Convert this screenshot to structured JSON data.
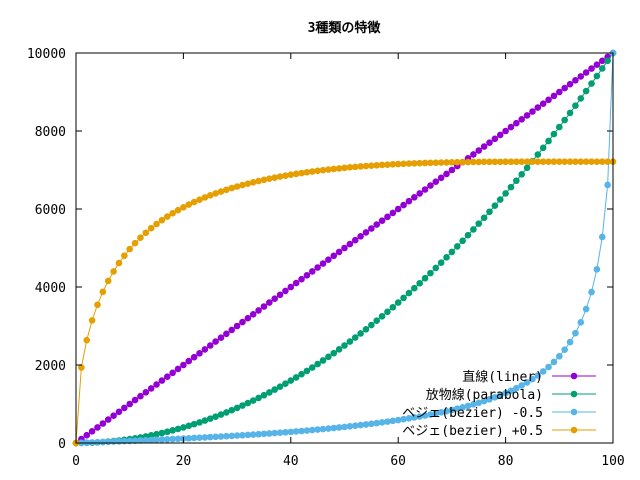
{
  "chart_data": {
    "type": "line",
    "title": "3種類の特徴",
    "xlabel": "",
    "ylabel": "",
    "xlim": [
      0,
      100
    ],
    "ylim": [
      0,
      10000
    ],
    "xticks": [
      0,
      20,
      40,
      60,
      80,
      100
    ],
    "yticks": [
      0,
      2000,
      4000,
      6000,
      8000,
      10000
    ],
    "grid": false,
    "legend_position": "bottom-right",
    "x": [
      0,
      1,
      2,
      3,
      4,
      5,
      6,
      7,
      8,
      9,
      10,
      11,
      12,
      13,
      14,
      15,
      16,
      17,
      18,
      19,
      20,
      21,
      22,
      23,
      24,
      25,
      26,
      27,
      28,
      29,
      30,
      31,
      32,
      33,
      34,
      35,
      36,
      37,
      38,
      39,
      40,
      41,
      42,
      43,
      44,
      45,
      46,
      47,
      48,
      49,
      50,
      51,
      52,
      53,
      54,
      55,
      56,
      57,
      58,
      59,
      60,
      61,
      62,
      63,
      64,
      65,
      66,
      67,
      68,
      69,
      70,
      71,
      72,
      73,
      74,
      75,
      76,
      77,
      78,
      79,
      80,
      81,
      82,
      83,
      84,
      85,
      86,
      87,
      88,
      89,
      90,
      91,
      92,
      93,
      94,
      95,
      96,
      97,
      98,
      99,
      100
    ],
    "series": [
      {
        "name": "直線(liner)",
        "color": "#9400d3",
        "values": [
          0,
          100,
          200,
          300,
          400,
          500,
          600,
          700,
          800,
          900,
          1000,
          1100,
          1200,
          1300,
          1400,
          1500,
          1600,
          1700,
          1800,
          1900,
          2000,
          2100,
          2200,
          2300,
          2400,
          2500,
          2600,
          2700,
          2800,
          2900,
          3000,
          3100,
          3200,
          3300,
          3400,
          3500,
          3600,
          3700,
          3800,
          3900,
          4000,
          4100,
          4200,
          4300,
          4400,
          4500,
          4600,
          4700,
          4800,
          4900,
          5000,
          5100,
          5200,
          5300,
          5400,
          5500,
          5600,
          5700,
          5800,
          5900,
          6000,
          6100,
          6200,
          6300,
          6400,
          6500,
          6600,
          6700,
          6800,
          6900,
          7000,
          7100,
          7200,
          7300,
          7400,
          7500,
          7600,
          7700,
          7800,
          7900,
          8000,
          8100,
          8200,
          8300,
          8400,
          8500,
          8600,
          8700,
          8800,
          8900,
          9000,
          9100,
          9200,
          9300,
          9400,
          9500,
          9600,
          9700,
          9800,
          9900,
          10000
        ]
      },
      {
        "name": "放物線(parabola)",
        "color": "#009e73",
        "values": [
          0,
          1,
          4,
          9,
          16,
          25,
          36,
          49,
          64,
          81,
          100,
          121,
          144,
          169,
          196,
          225,
          256,
          289,
          324,
          361,
          400,
          441,
          484,
          529,
          576,
          625,
          676,
          729,
          784,
          841,
          900,
          961,
          1024,
          1089,
          1156,
          1225,
          1296,
          1369,
          1444,
          1521,
          1600,
          1681,
          1764,
          1849,
          1936,
          2025,
          2116,
          2209,
          2304,
          2401,
          2500,
          2601,
          2704,
          2809,
          2916,
          3025,
          3136,
          3249,
          3364,
          3481,
          3600,
          3721,
          3844,
          3969,
          4096,
          4225,
          4356,
          4489,
          4624,
          4761,
          4900,
          5041,
          5184,
          5329,
          5476,
          5625,
          5776,
          5929,
          6084,
          6241,
          6400,
          6561,
          6724,
          6889,
          7056,
          7225,
          7396,
          7569,
          7744,
          7921,
          8100,
          8281,
          8464,
          8649,
          8836,
          9025,
          9216,
          9409,
          9604,
          9801,
          10000
        ]
      },
      {
        "name": "ベジェ(bezier) -0.5",
        "color": "#56b4e9",
        "values": [
          0,
          5,
          10,
          15,
          20,
          26,
          31,
          37,
          42,
          48,
          53,
          59,
          65,
          71,
          77,
          83,
          89,
          95,
          102,
          108,
          115,
          122,
          129,
          136,
          143,
          151,
          158,
          166,
          174,
          182,
          190,
          199,
          207,
          216,
          225,
          235,
          244,
          254,
          264,
          275,
          285,
          296,
          308,
          319,
          331,
          344,
          357,
          370,
          384,
          398,
          412,
          427,
          443,
          459,
          475,
          493,
          510,
          529,
          548,
          568,
          588,
          610,
          632,
          655,
          679,
          704,
          730,
          758,
          786,
          816,
          848,
          881,
          915,
          952,
          991,
          1032,
          1075,
          1121,
          1171,
          1223,
          1280,
          1340,
          1406,
          1477,
          1554,
          1638,
          1731,
          1834,
          1949,
          2078,
          2224,
          2392,
          2587,
          2817,
          3094,
          3435,
          3871,
          4453,
          5283,
          6617,
          10000
        ]
      },
      {
        "name": "ベジェ(bezier) +0.5",
        "color": "#e69f00",
        "values": [
          0,
          1934,
          2637,
          3144,
          3545,
          3876,
          4157,
          4400,
          4613,
          4803,
          4972,
          5125,
          5264,
          5391,
          5508,
          5615,
          5714,
          5806,
          5891,
          5970,
          6044,
          6113,
          6178,
          6239,
          6296,
          6350,
          6400,
          6448,
          6493,
          6536,
          6576,
          6614,
          6650,
          6685,
          6717,
          6748,
          6777,
          6804,
          6831,
          6855,
          6879,
          6901,
          6922,
          6942,
          6961,
          6979,
          6996,
          7012,
          7027,
          7041,
          7055,
          7068,
          7080,
          7091,
          7101,
          7111,
          7121,
          7129,
          7137,
          7145,
          7152,
          7158,
          7164,
          7170,
          7175,
          7180,
          7184,
          7188,
          7191,
          7194,
          7197,
          7200,
          7202,
          7204,
          7206,
          7207,
          7209,
          7210,
          7211,
          7211,
          7212,
          7212,
          7212,
          7213,
          7213,
          7213,
          7213,
          7213,
          7213,
          7213,
          7213,
          7213,
          7213,
          7213,
          7213,
          7213,
          7213,
          7213,
          7213,
          7213,
          7213
        ]
      }
    ]
  }
}
